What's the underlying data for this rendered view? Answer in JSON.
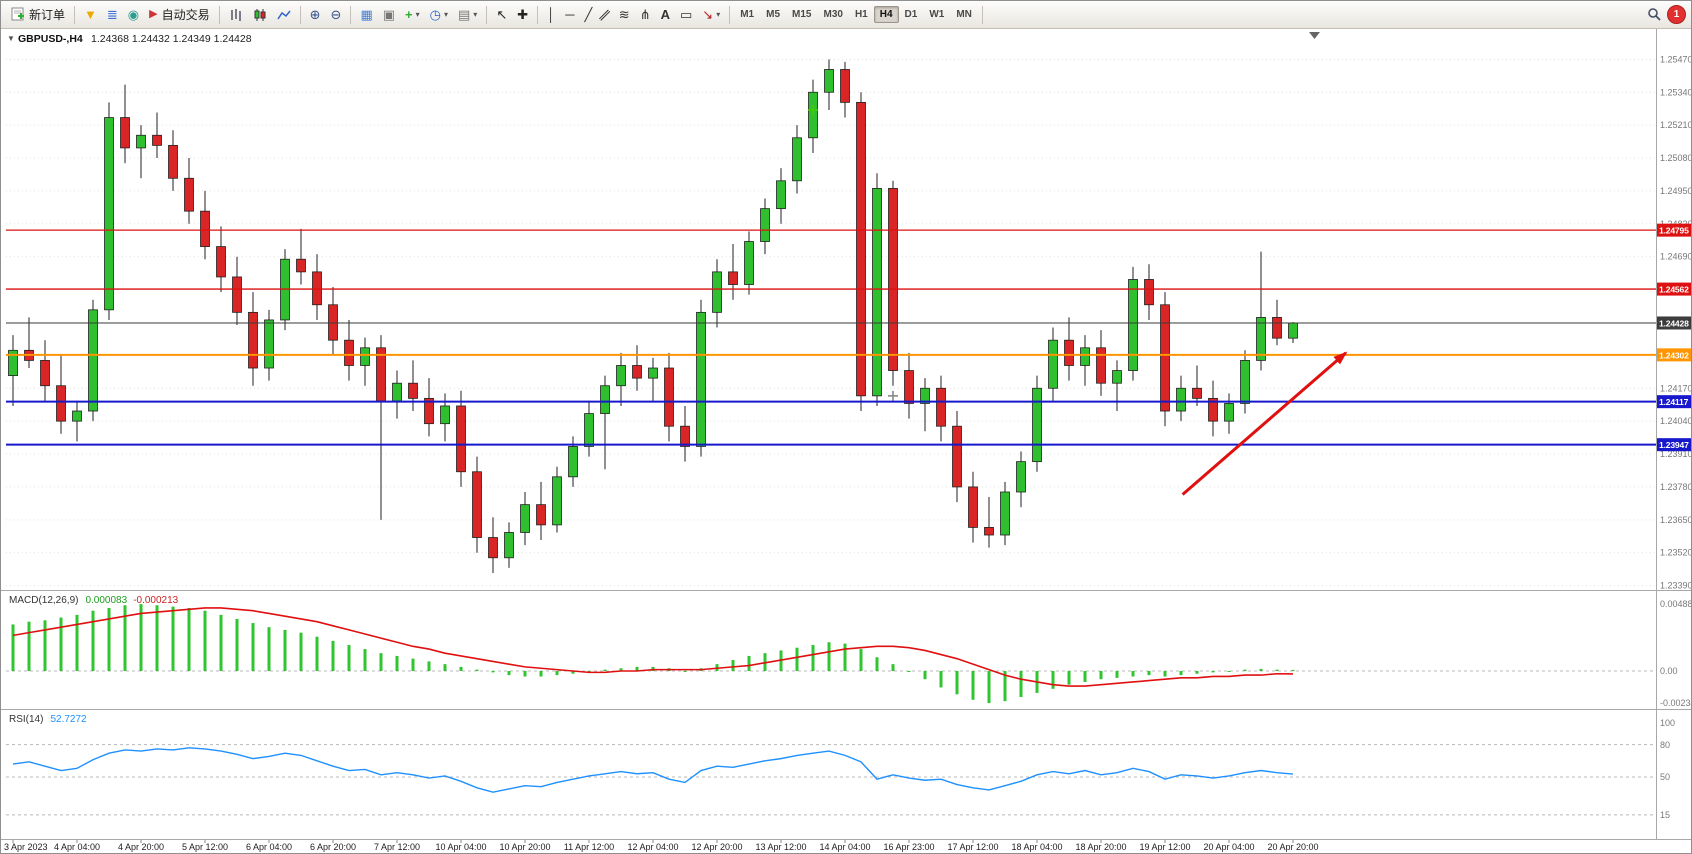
{
  "toolbar": {
    "new_order": "新订单",
    "auto_trading": "自动交易",
    "timeframes": [
      "M1",
      "M5",
      "M15",
      "M30",
      "H1",
      "H4",
      "D1",
      "W1",
      "MN"
    ],
    "active_timeframe": "H4",
    "notification_count": "1",
    "glyphs": {
      "funnel": "▼",
      "layers": "≣",
      "sound": "◉",
      "play": "▶",
      "zoom_in": "⊕",
      "zoom_out": "⊖",
      "tile": "▦",
      "cascade": "▣",
      "plus": "+",
      "clock": "◷",
      "template": "▤",
      "dropdown": "▾",
      "cursor": "↖",
      "crosshair": "✚",
      "vline": "│",
      "hline": "─",
      "trendline": "╱",
      "channel": "∥",
      "fibonacci": "≋",
      "pitchfork": "⋔",
      "text_tool": "A",
      "label_tool": "▭",
      "arrows_tool": "↘"
    }
  },
  "chart": {
    "expander": "▼",
    "title": "GBPUSD-,H4",
    "ohlc_text": "1.24368 1.24432 1.24349 1.24428"
  },
  "chart_data": {
    "type": "candlestick",
    "symbol": "GBPUSD-",
    "timeframe": "H4",
    "current_bar": {
      "open": 1.24368,
      "high": 1.24432,
      "low": 1.24349,
      "close": 1.24428
    },
    "colors": {
      "up": "#2fbf2f",
      "down": "#d92525",
      "outline": "#222222",
      "macd_hist": "#30c430",
      "macd_signal": "#e01010",
      "rsi": "#1e90ff",
      "grid": "#e0e0e0",
      "red_level": "#dd1111",
      "blue_level": "#1717cc",
      "orange_level": "#ff9500",
      "bid_line": "#3c3c3c",
      "arrow": "#e01010"
    },
    "price_axis": {
      "labels": [
        "1.25470",
        "1.25340",
        "1.25210",
        "1.25080",
        "1.24950",
        "1.24820",
        "1.24690",
        "1.24560",
        "1.24430",
        "1.24300",
        "1.24170",
        "1.24040",
        "1.23910",
        "1.23780",
        "1.23650",
        "1.23520",
        "1.23390"
      ]
    },
    "level_lines": [
      {
        "price": 1.24795,
        "color": "#dd1111",
        "width": 1.3
      },
      {
        "price": 1.24562,
        "color": "#dd1111",
        "width": 1.3
      },
      {
        "price": 1.24428,
        "color": "#3c3c3c",
        "width": 1
      },
      {
        "price": 1.24302,
        "color": "#ff9500",
        "width": 2
      },
      {
        "price": 1.24117,
        "color": "#1717cc",
        "width": 2
      },
      {
        "price": 1.23947,
        "color": "#1717cc",
        "width": 2
      }
    ],
    "trend_arrow": {
      "i1": 73.1,
      "p1": 1.2375,
      "i2": 83.3,
      "p2": 1.2431,
      "color": "#e01010",
      "width": 3
    },
    "markers": [
      {
        "i": 50,
        "price": 1.2527,
        "color": "#44cc00"
      },
      {
        "i": 55,
        "price": 1.2414,
        "color": "#888888"
      }
    ],
    "candles": [
      [
        1.2422,
        1.2438,
        1.241,
        1.2432
      ],
      [
        1.2432,
        1.2445,
        1.2425,
        1.2428
      ],
      [
        1.2428,
        1.2436,
        1.2412,
        1.2418
      ],
      [
        1.2418,
        1.243,
        1.2399,
        1.2404
      ],
      [
        1.2404,
        1.2412,
        1.2396,
        1.2408
      ],
      [
        1.2408,
        1.2452,
        1.2404,
        1.2448
      ],
      [
        1.2448,
        1.253,
        1.2444,
        1.2524
      ],
      [
        1.2524,
        1.2537,
        1.2506,
        1.2512
      ],
      [
        1.2512,
        1.2521,
        1.25,
        1.2517
      ],
      [
        1.2517,
        1.2526,
        1.2508,
        1.2513
      ],
      [
        1.2513,
        1.2519,
        1.2495,
        1.25
      ],
      [
        1.25,
        1.2508,
        1.2482,
        1.2487
      ],
      [
        1.2487,
        1.2495,
        1.2468,
        1.2473
      ],
      [
        1.2473,
        1.2481,
        1.2455,
        1.2461
      ],
      [
        1.2461,
        1.2469,
        1.2442,
        1.2447
      ],
      [
        1.2447,
        1.2455,
        1.2418,
        1.2425
      ],
      [
        1.2425,
        1.2448,
        1.242,
        1.2444
      ],
      [
        1.2444,
        1.2472,
        1.244,
        1.2468
      ],
      [
        1.2468,
        1.248,
        1.2458,
        1.2463
      ],
      [
        1.2463,
        1.247,
        1.2444,
        1.245
      ],
      [
        1.245,
        1.2457,
        1.243,
        1.2436
      ],
      [
        1.2436,
        1.2444,
        1.242,
        1.2426
      ],
      [
        1.2426,
        1.2437,
        1.2418,
        1.2433
      ],
      [
        1.2433,
        1.2438,
        1.2365,
        1.2412
      ],
      [
        1.2412,
        1.2424,
        1.2405,
        1.2419
      ],
      [
        1.2419,
        1.2428,
        1.2408,
        1.2413
      ],
      [
        1.2413,
        1.2421,
        1.2398,
        1.2403
      ],
      [
        1.2403,
        1.2415,
        1.2396,
        1.241
      ],
      [
        1.241,
        1.2416,
        1.2378,
        1.2384
      ],
      [
        1.2384,
        1.239,
        1.2352,
        1.2358
      ],
      [
        1.2358,
        1.2366,
        1.2344,
        1.235
      ],
      [
        1.235,
        1.2364,
        1.2346,
        1.236
      ],
      [
        1.236,
        1.2376,
        1.2355,
        1.2371
      ],
      [
        1.2371,
        1.238,
        1.2357,
        1.2363
      ],
      [
        1.2363,
        1.2386,
        1.236,
        1.2382
      ],
      [
        1.2382,
        1.2398,
        1.2378,
        1.2394
      ],
      [
        1.2394,
        1.2412,
        1.239,
        1.2407
      ],
      [
        1.2407,
        1.2422,
        1.2385,
        1.2418
      ],
      [
        1.2418,
        1.2431,
        1.241,
        1.2426
      ],
      [
        1.2426,
        1.2434,
        1.2416,
        1.2421
      ],
      [
        1.2421,
        1.2429,
        1.2412,
        1.2425
      ],
      [
        1.2425,
        1.2431,
        1.2396,
        1.2402
      ],
      [
        1.2402,
        1.241,
        1.2388,
        1.2394
      ],
      [
        1.2394,
        1.2452,
        1.239,
        1.2447
      ],
      [
        1.2447,
        1.2468,
        1.2441,
        1.2463
      ],
      [
        1.2463,
        1.2474,
        1.2452,
        1.2458
      ],
      [
        1.2458,
        1.2479,
        1.2454,
        1.2475
      ],
      [
        1.2475,
        1.2492,
        1.247,
        1.2488
      ],
      [
        1.2488,
        1.2504,
        1.2482,
        1.2499
      ],
      [
        1.2499,
        1.2521,
        1.2494,
        1.2516
      ],
      [
        1.2516,
        1.2539,
        1.251,
        1.2534
      ],
      [
        1.2534,
        1.2547,
        1.2527,
        1.2543
      ],
      [
        1.2543,
        1.2546,
        1.2524,
        1.253
      ],
      [
        1.253,
        1.2534,
        1.2408,
        1.2414
      ],
      [
        1.2414,
        1.2502,
        1.241,
        1.2496
      ],
      [
        1.2496,
        1.2499,
        1.2418,
        1.2424
      ],
      [
        1.2424,
        1.2431,
        1.2405,
        1.2411
      ],
      [
        1.2411,
        1.2421,
        1.24,
        1.2417
      ],
      [
        1.2417,
        1.2422,
        1.2396,
        1.2402
      ],
      [
        1.2402,
        1.2408,
        1.2372,
        1.2378
      ],
      [
        1.2378,
        1.2384,
        1.2356,
        1.2362
      ],
      [
        1.2362,
        1.2374,
        1.2354,
        1.2359
      ],
      [
        1.2359,
        1.238,
        1.2355,
        1.2376
      ],
      [
        1.2376,
        1.2392,
        1.237,
        1.2388
      ],
      [
        1.2388,
        1.2422,
        1.2384,
        1.2417
      ],
      [
        1.2417,
        1.2441,
        1.2412,
        1.2436
      ],
      [
        1.2436,
        1.2445,
        1.242,
        1.2426
      ],
      [
        1.2426,
        1.2438,
        1.2418,
        1.2433
      ],
      [
        1.2433,
        1.244,
        1.2414,
        1.2419
      ],
      [
        1.2419,
        1.2428,
        1.2408,
        1.2424
      ],
      [
        1.2424,
        1.2465,
        1.242,
        1.246
      ],
      [
        1.246,
        1.2466,
        1.2444,
        1.245
      ],
      [
        1.245,
        1.2455,
        1.2402,
        1.2408
      ],
      [
        1.2408,
        1.2422,
        1.2404,
        1.2417
      ],
      [
        1.2417,
        1.2426,
        1.241,
        1.2413
      ],
      [
        1.2413,
        1.242,
        1.2398,
        1.2404
      ],
      [
        1.2404,
        1.2415,
        1.2399,
        1.2411
      ],
      [
        1.2411,
        1.2432,
        1.2407,
        1.2428
      ],
      [
        1.2428,
        1.2471,
        1.2424,
        1.2445
      ],
      [
        1.2445,
        1.2452,
        1.2434,
        1.24368
      ],
      [
        1.24368,
        1.24432,
        1.24349,
        1.24428
      ]
    ],
    "time_labels": [
      [
        0,
        "3 Apr 2023"
      ],
      [
        4,
        "4 Apr 04:00"
      ],
      [
        8,
        "4 Apr 20:00"
      ],
      [
        12,
        "5 Apr 12:00"
      ],
      [
        16,
        "6 Apr 04:00"
      ],
      [
        20,
        "6 Apr 20:00"
      ],
      [
        24,
        "7 Apr 12:00"
      ],
      [
        28,
        "10 Apr 04:00"
      ],
      [
        32,
        "10 Apr 20:00"
      ],
      [
        36,
        "11 Apr 12:00"
      ],
      [
        40,
        "12 Apr 04:00"
      ],
      [
        44,
        "12 Apr 20:00"
      ],
      [
        48,
        "13 Apr 12:00"
      ],
      [
        52,
        "14 Apr 04:00"
      ],
      [
        56,
        "16 Apr 23:00"
      ],
      [
        60,
        "17 Apr 12:00"
      ],
      [
        64,
        "18 Apr 04:00"
      ],
      [
        68,
        "18 Apr 20:00"
      ],
      [
        72,
        "19 Apr 12:00"
      ],
      [
        76,
        "20 Apr 04:00"
      ],
      [
        80,
        "20 Apr 20:00"
      ]
    ],
    "macd": {
      "name": "MACD(12,26,9)",
      "value_main": "0.000083",
      "value_signal": "-0.000213",
      "axis": [
        "0.004882",
        "0.00",
        "-0.002341"
      ],
      "histogram": [
        0.0034,
        0.0036,
        0.0037,
        0.0039,
        0.0041,
        0.0044,
        0.0046,
        0.0048,
        0.004882,
        0.0048,
        0.0047,
        0.0046,
        0.0044,
        0.0041,
        0.0038,
        0.0035,
        0.0032,
        0.003,
        0.0028,
        0.0025,
        0.0022,
        0.0019,
        0.0016,
        0.0013,
        0.0011,
        0.0009,
        0.0007,
        0.0005,
        0.0003,
        0.0001,
        -0.0001,
        -0.0003,
        -0.0004,
        -0.0004,
        -0.0003,
        -0.0002,
        -0.0001,
        0.0001,
        0.0002,
        0.0003,
        0.0003,
        0.0002,
        0.0,
        0.0002,
        0.0005,
        0.0008,
        0.0011,
        0.0013,
        0.0015,
        0.0017,
        0.0019,
        0.0021,
        0.002,
        0.0016,
        0.001,
        0.0005,
        0.0,
        -0.0006,
        -0.0012,
        -0.0017,
        -0.0021,
        -0.002341,
        -0.0022,
        -0.0019,
        -0.0016,
        -0.0013,
        -0.001,
        -0.0008,
        -0.0006,
        -0.0005,
        -0.0004,
        -0.0003,
        -0.0004,
        -0.0003,
        -0.0002,
        -0.0001,
        0.0,
        0.0001,
        0.00015,
        0.0001,
        8.3e-05
      ],
      "signal": [
        0.0026,
        0.0028,
        0.003,
        0.0032,
        0.0034,
        0.0036,
        0.0038,
        0.004,
        0.0042,
        0.0043,
        0.0044,
        0.0045,
        0.0046,
        0.0046,
        0.0045,
        0.0044,
        0.0042,
        0.004,
        0.0038,
        0.0036,
        0.0033,
        0.003,
        0.0027,
        0.0024,
        0.0021,
        0.0018,
        0.0016,
        0.0013,
        0.0011,
        0.0009,
        0.0007,
        0.0005,
        0.0003,
        0.0002,
        0.0001,
        0.0,
        -0.0001,
        -0.0001,
        0.0,
        0.0,
        0.0001,
        0.0001,
        0.0001,
        0.0001,
        0.0002,
        0.0003,
        0.0004,
        0.0006,
        0.0008,
        0.001,
        0.0012,
        0.0014,
        0.0016,
        0.0017,
        0.0018,
        0.0018,
        0.0017,
        0.0015,
        0.0012,
        0.0009,
        0.0005,
        0.0001,
        -0.0003,
        -0.0006,
        -0.0008,
        -0.001,
        -0.0011,
        -0.0011,
        -0.001,
        -0.0009,
        -0.0008,
        -0.0007,
        -0.0006,
        -0.0005,
        -0.0005,
        -0.0004,
        -0.0004,
        -0.0003,
        -0.0003,
        -0.0002,
        -0.000213
      ]
    },
    "rsi": {
      "name": "RSI(14)",
      "value": "52.7272",
      "axis": [
        "100",
        "80",
        "50",
        "15"
      ],
      "levels_dashed": [
        80,
        50,
        15
      ],
      "values": [
        62,
        64,
        60,
        56,
        58,
        66,
        72,
        75,
        74,
        76,
        75,
        77,
        76,
        74,
        71,
        67,
        69,
        72,
        70,
        65,
        60,
        56,
        57,
        52,
        54,
        52,
        49,
        51,
        46,
        40,
        36,
        39,
        42,
        41,
        45,
        48,
        51,
        53,
        55,
        53,
        54,
        48,
        45,
        56,
        60,
        59,
        62,
        65,
        67,
        70,
        72,
        74,
        70,
        64,
        48,
        52,
        49,
        47,
        48,
        43,
        40,
        38,
        42,
        46,
        52,
        55,
        53,
        56,
        52,
        54,
        58,
        55,
        48,
        52,
        51,
        49,
        51,
        54,
        56,
        54,
        52.7272
      ]
    }
  }
}
